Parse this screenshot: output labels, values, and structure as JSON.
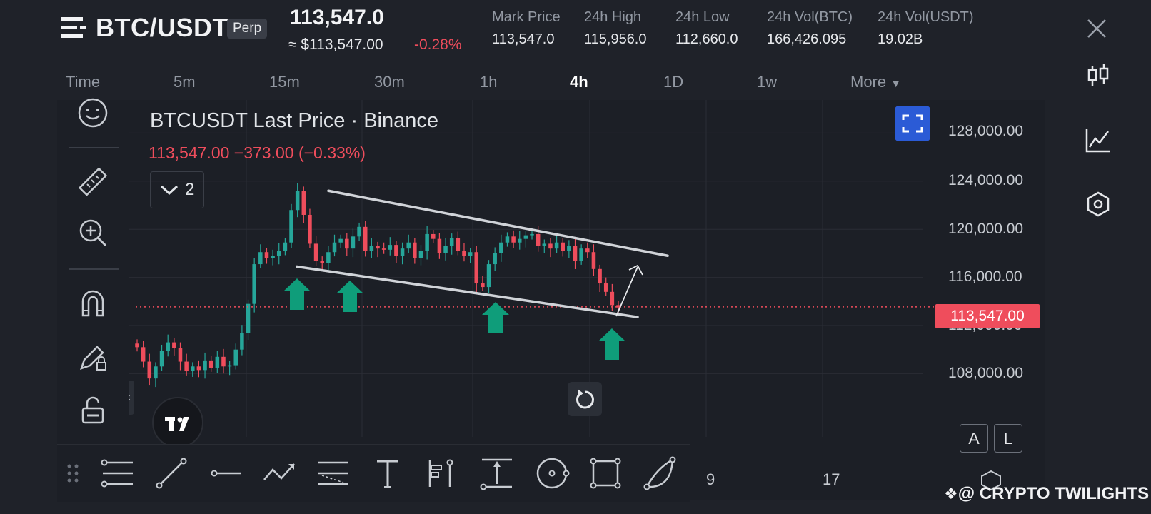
{
  "header": {
    "pair": "BTC/USDT",
    "badge": "Perp",
    "last_price": "113,547.0",
    "usd_price": "≈ $113,547.00",
    "change_pct": "-0.28%",
    "stats": [
      {
        "label": "Mark Price",
        "value": "113,547.0"
      },
      {
        "label": "24h High",
        "value": "115,956.0"
      },
      {
        "label": "24h Low",
        "value": "112,660.0"
      },
      {
        "label": "24h Vol(BTC)",
        "value": "166,426.095"
      },
      {
        "label": "24h Vol(USDT)",
        "value": "19.02B"
      }
    ]
  },
  "timeframes": [
    "Time",
    "5m",
    "15m",
    "30m",
    "1h",
    "4h",
    "1D",
    "1w",
    "More"
  ],
  "active_timeframe": "4h",
  "chart": {
    "title": "BTCUSDT Last Price · Binance",
    "price_line": "113,547.00  −373.00 (−0.33%)",
    "series_count": "2",
    "current_price_tag": "113,547.00",
    "y_labels": [
      "128,000.00",
      "124,000.00",
      "120,000.00",
      "116,000.00",
      "112,000.00",
      "108,000.00"
    ],
    "x_labels": [
      "9",
      "17"
    ],
    "scale_buttons": [
      "A",
      "L"
    ]
  },
  "chart_data": {
    "type": "candlestick",
    "title": "BTCUSDT Last Price · Binance",
    "ylim": [
      104000,
      130000
    ],
    "y_ticks": [
      108000,
      112000,
      116000,
      120000,
      124000,
      128000
    ],
    "current_price": 113547,
    "close_series": [
      110200,
      109000,
      107600,
      108600,
      109900,
      110600,
      110100,
      109000,
      108200,
      108600,
      108300,
      109100,
      108500,
      109400,
      108600,
      108700,
      110000,
      111400,
      113800,
      117100,
      118100,
      117600,
      117800,
      118200,
      118900,
      121600,
      123200,
      121200,
      118800,
      117400,
      117200,
      118100,
      118900,
      119200,
      118400,
      119400,
      120200,
      118200,
      118600,
      118400,
      118300,
      118700,
      117800,
      118400,
      118900,
      117600,
      118200,
      119600,
      119200,
      118000,
      118600,
      119300,
      118200,
      117800,
      118100,
      115500,
      115200,
      117100,
      118000,
      118900,
      119400,
      118900,
      119200,
      119500,
      119600,
      118600,
      118800,
      118400,
      118900,
      118200,
      118600,
      117400,
      118400,
      118100,
      116700,
      115500,
      114800,
      113700,
      113500
    ],
    "annotations": {
      "upper_trendline": "descending resistance from ~123,200 to ~117,800",
      "lower_trendline": "descending support from ~117,000 to ~113,300",
      "support_touches": 4,
      "projection": "breakout arrow toward upper trendline"
    }
  },
  "watermark": "@ CRYPTO TWILIGHTS",
  "colors": {
    "up": "#26a69a",
    "down": "#ef4d5c",
    "accent": "#2b5bd6",
    "arrow": "#0f9d7a"
  },
  "icons": {
    "left_toolbar": [
      "emoji-icon",
      "ruler-icon",
      "zoom-in-icon",
      "magnet-icon",
      "pencil-lock-icon",
      "unlock-icon"
    ],
    "right_rail": [
      "close-icon",
      "candles-icon",
      "indicator-icon",
      "settings-hex-icon"
    ],
    "drawing_tools": [
      "fib-lines-icon",
      "trend-line-icon",
      "horizontal-line-icon",
      "path-icon",
      "pitchfork-icon",
      "text-icon",
      "long-position-icon",
      "measure-icon",
      "circle-icon",
      "rectangle-icon",
      "arc-icon"
    ]
  }
}
